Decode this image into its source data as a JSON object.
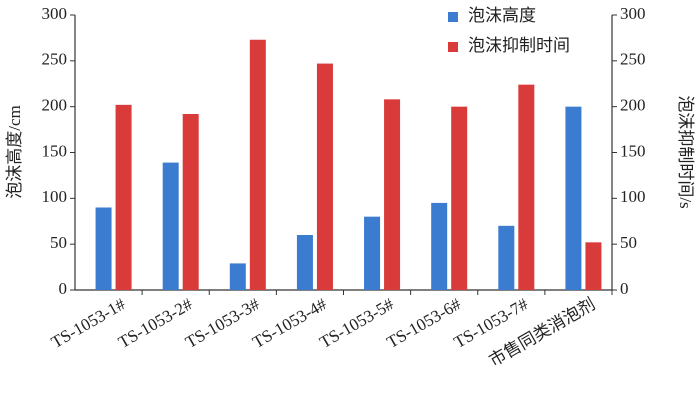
{
  "chart_data": {
    "type": "bar",
    "categories": [
      "TS-1053-1#",
      "TS-1053-2#",
      "TS-1053-3#",
      "TS-1053-4#",
      "TS-1053-5#",
      "TS-1053-6#",
      "TS-1053-7#",
      "市售同类消泡剂"
    ],
    "series": [
      {
        "name": "泡沫高度",
        "color": "#3b7bd0",
        "values": [
          90,
          139,
          29,
          60,
          80,
          95,
          70,
          200
        ]
      },
      {
        "name": "泡沫抑制时间",
        "color": "#d93a3a",
        "axis": "y2",
        "values": [
          202,
          192,
          273,
          247,
          208,
          200,
          224,
          52
        ]
      }
    ],
    "ylabel": "泡沫高度/cm",
    "y2label": "泡沫抑制时间/s",
    "ylim": [
      0,
      300
    ],
    "yticks": [
      0,
      50,
      100,
      150,
      200,
      250,
      300
    ],
    "y2lim": [
      0,
      300
    ],
    "y2ticks": [
      0,
      50,
      100,
      150,
      200,
      250,
      300
    ],
    "legend": "upper-right",
    "grid": false
  }
}
